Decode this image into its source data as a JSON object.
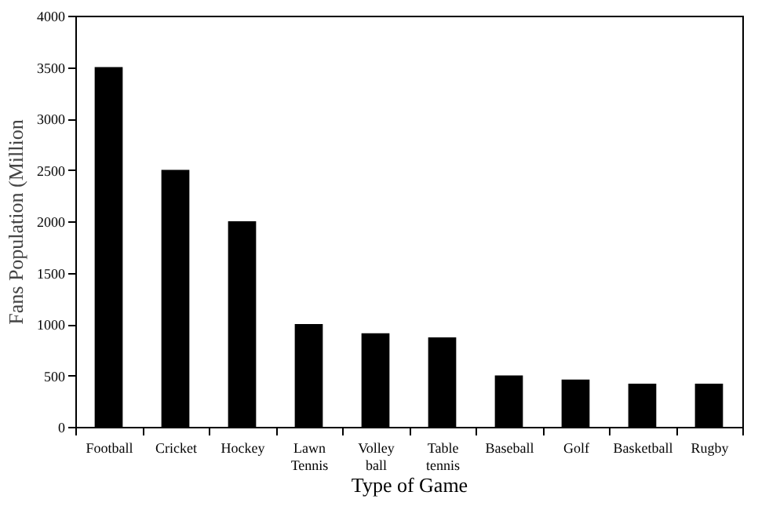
{
  "chart_data": {
    "type": "bar",
    "xlabel": "Type of Game",
    "ylabel": "Fans Population (Million",
    "categories": [
      "Football",
      "Cricket",
      "Hockey",
      "Lawn Tennis",
      "Volley ball",
      "Table tennis",
      "Baseball",
      "Golf",
      "Basketball",
      "Rugby"
    ],
    "values": [
      3500,
      2500,
      2000,
      1000,
      910,
      870,
      500,
      460,
      420,
      420
    ],
    "color": "#000000",
    "ylim": [
      0,
      4000
    ],
    "yticks": [
      0,
      500,
      1000,
      1500,
      2000,
      2500,
      3000,
      3500,
      4000
    ],
    "grid": false
  }
}
